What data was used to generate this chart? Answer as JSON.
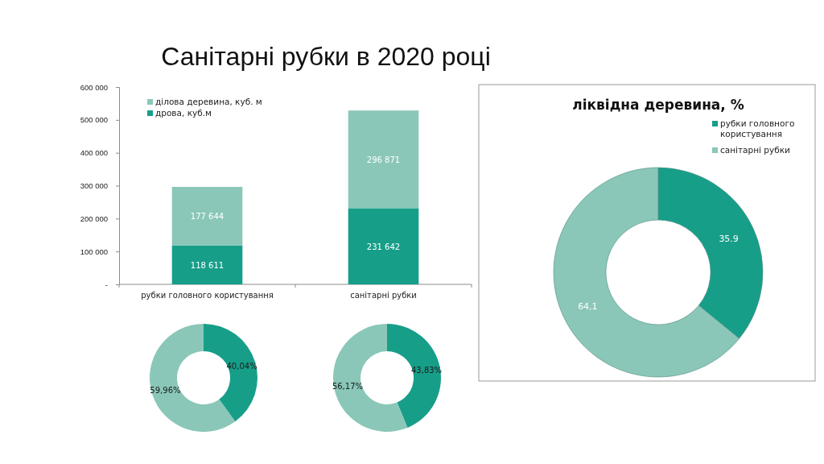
{
  "chart_data": [
    {
      "type": "bar",
      "title": "Санітарні рубки в 2020 році",
      "categories": [
        "рубки головного користування",
        "санітарні рубки"
      ],
      "stacked": true,
      "series": [
        {
          "name": "дрова, куб.м",
          "color": "#179e89",
          "values": [
            118611,
            231642
          ],
          "value_labels": [
            "118 611",
            "231 642"
          ]
        },
        {
          "name": "ділова деревина, куб. м",
          "color": "#8ac7b8",
          "values": [
            177644,
            296871
          ],
          "value_labels": [
            "177 644",
            "296 871"
          ]
        }
      ],
      "ylim": [
        0,
        600000
      ],
      "yticks": [
        {
          "value": 0,
          "label": "-"
        },
        {
          "value": 100000,
          "label": "100 000"
        },
        {
          "value": 200000,
          "label": "200 000"
        },
        {
          "value": 300000,
          "label": "300 000"
        },
        {
          "value": 400000,
          "label": "400 000"
        },
        {
          "value": 500000,
          "label": "500 000"
        },
        {
          "value": 600000,
          "label": "600 000"
        }
      ],
      "legend": "top left"
    },
    {
      "type": "donut",
      "categories": [
        null,
        null
      ],
      "values": [
        40.04,
        59.96
      ],
      "colors": [
        "#179e89",
        "#8ac7b8"
      ],
      "value_labels": [
        "40,04%",
        "59,96%"
      ]
    },
    {
      "type": "donut",
      "categories": [
        null,
        null
      ],
      "values": [
        43.83,
        56.17
      ],
      "colors": [
        "#179e89",
        "#8ac7b8"
      ],
      "value_labels": [
        "43,83%",
        "56,17%"
      ]
    },
    {
      "type": "donut",
      "title": "ліквідна деревина, %",
      "categories": [
        "рубки головного користування",
        "санітарні рубки"
      ],
      "values": [
        35.9,
        64.1
      ],
      "colors": [
        "#179e89",
        "#8ac7b8"
      ],
      "value_labels": [
        "35.9",
        "64,1"
      ],
      "legend": "top right"
    }
  ]
}
